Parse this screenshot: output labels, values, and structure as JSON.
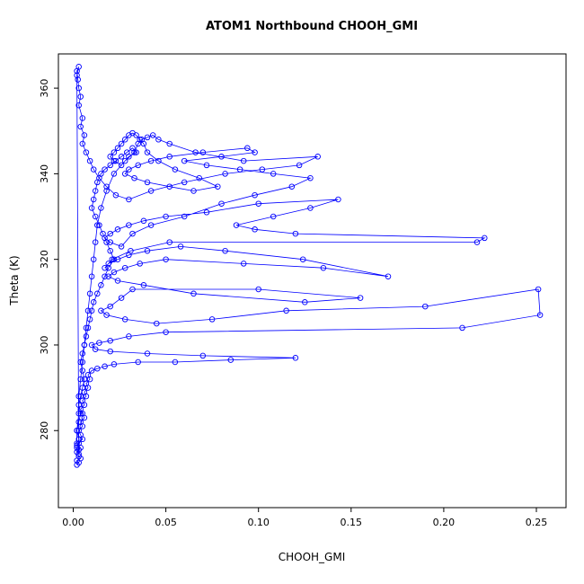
{
  "chart_data": {
    "type": "line",
    "title": "ATOM1 Northbound CHOOH_GMI",
    "xlabel": "CHOOH_GMI",
    "ylabel": "Theta (K)",
    "xlim": [
      -0.008,
      0.266
    ],
    "ylim": [
      262,
      368
    ],
    "xticks": [
      0.0,
      0.05,
      0.1,
      0.15,
      0.2,
      0.25
    ],
    "xtick_labels": [
      "0.00",
      "0.05",
      "0.10",
      "0.15",
      "0.20",
      "0.25"
    ],
    "yticks": [
      280,
      300,
      320,
      340,
      360
    ],
    "ytick_labels": [
      "280",
      "300",
      "320",
      "340",
      "360"
    ],
    "grid": false,
    "legend": null,
    "marker": "open-circle",
    "series_color": "#0000ff",
    "box_color": "#000000",
    "points": [
      [
        0.002,
        272
      ],
      [
        0.003,
        272.5
      ],
      [
        0.002,
        273
      ],
      [
        0.004,
        273.5
      ],
      [
        0.003,
        274
      ],
      [
        0.002,
        275
      ],
      [
        0.003,
        275.5
      ],
      [
        0.004,
        276
      ],
      [
        0.002,
        276.5
      ],
      [
        0.003,
        277
      ],
      [
        0.005,
        278
      ],
      [
        0.004,
        279
      ],
      [
        0.003,
        280
      ],
      [
        0.005,
        281
      ],
      [
        0.004,
        282
      ],
      [
        0.006,
        283
      ],
      [
        0.005,
        284
      ],
      [
        0.004,
        285
      ],
      [
        0.006,
        286
      ],
      [
        0.005,
        287
      ],
      [
        0.007,
        288
      ],
      [
        0.006,
        289
      ],
      [
        0.008,
        290
      ],
      [
        0.007,
        291
      ],
      [
        0.009,
        292
      ],
      [
        0.008,
        293
      ],
      [
        0.01,
        294
      ],
      [
        0.013,
        294.5
      ],
      [
        0.017,
        295
      ],
      [
        0.022,
        295.5
      ],
      [
        0.035,
        296
      ],
      [
        0.055,
        296
      ],
      [
        0.085,
        296.5
      ],
      [
        0.12,
        297
      ],
      [
        0.07,
        297.5
      ],
      [
        0.04,
        298
      ],
      [
        0.02,
        298.5
      ],
      [
        0.012,
        299
      ],
      [
        0.01,
        300
      ],
      [
        0.014,
        300.5
      ],
      [
        0.02,
        301
      ],
      [
        0.03,
        302
      ],
      [
        0.05,
        303
      ],
      [
        0.21,
        304
      ],
      [
        0.252,
        307
      ],
      [
        0.251,
        313
      ],
      [
        0.19,
        309
      ],
      [
        0.115,
        308
      ],
      [
        0.075,
        306
      ],
      [
        0.045,
        305
      ],
      [
        0.028,
        306
      ],
      [
        0.018,
        307
      ],
      [
        0.015,
        308
      ],
      [
        0.02,
        309
      ],
      [
        0.026,
        311
      ],
      [
        0.032,
        313
      ],
      [
        0.1,
        313
      ],
      [
        0.155,
        311
      ],
      [
        0.125,
        310
      ],
      [
        0.065,
        312
      ],
      [
        0.038,
        314
      ],
      [
        0.024,
        315
      ],
      [
        0.019,
        316
      ],
      [
        0.022,
        317
      ],
      [
        0.028,
        318
      ],
      [
        0.036,
        319
      ],
      [
        0.05,
        320
      ],
      [
        0.092,
        319
      ],
      [
        0.135,
        318
      ],
      [
        0.17,
        316
      ],
      [
        0.124,
        320
      ],
      [
        0.082,
        322
      ],
      [
        0.058,
        323
      ],
      [
        0.04,
        322
      ],
      [
        0.03,
        321
      ],
      [
        0.024,
        320
      ],
      [
        0.019,
        319
      ],
      [
        0.017,
        318
      ],
      [
        0.021,
        320
      ],
      [
        0.031,
        322
      ],
      [
        0.052,
        324
      ],
      [
        0.218,
        324
      ],
      [
        0.222,
        325
      ],
      [
        0.12,
        326
      ],
      [
        0.098,
        327
      ],
      [
        0.088,
        328
      ],
      [
        0.108,
        330
      ],
      [
        0.128,
        332
      ],
      [
        0.143,
        334
      ],
      [
        0.1,
        333
      ],
      [
        0.072,
        331
      ],
      [
        0.05,
        330
      ],
      [
        0.038,
        329
      ],
      [
        0.03,
        328
      ],
      [
        0.024,
        327
      ],
      [
        0.02,
        326
      ],
      [
        0.017,
        325
      ],
      [
        0.02,
        324
      ],
      [
        0.026,
        323
      ],
      [
        0.032,
        326
      ],
      [
        0.042,
        328
      ],
      [
        0.06,
        330
      ],
      [
        0.08,
        333
      ],
      [
        0.098,
        335
      ],
      [
        0.118,
        337
      ],
      [
        0.128,
        339
      ],
      [
        0.108,
        340
      ],
      [
        0.09,
        341
      ],
      [
        0.072,
        342
      ],
      [
        0.06,
        343
      ],
      [
        0.08,
        344
      ],
      [
        0.098,
        345
      ],
      [
        0.094,
        346
      ],
      [
        0.07,
        345
      ],
      [
        0.052,
        344
      ],
      [
        0.042,
        343
      ],
      [
        0.035,
        342
      ],
      [
        0.03,
        341
      ],
      [
        0.028,
        340
      ],
      [
        0.033,
        339
      ],
      [
        0.04,
        338
      ],
      [
        0.052,
        337
      ],
      [
        0.065,
        336
      ],
      [
        0.078,
        337
      ],
      [
        0.068,
        339
      ],
      [
        0.055,
        341
      ],
      [
        0.046,
        343
      ],
      [
        0.04,
        345
      ],
      [
        0.038,
        347
      ],
      [
        0.036,
        348
      ],
      [
        0.034,
        349
      ],
      [
        0.032,
        349.5
      ],
      [
        0.03,
        349
      ],
      [
        0.028,
        348
      ],
      [
        0.026,
        347
      ],
      [
        0.024,
        346
      ],
      [
        0.022,
        345
      ],
      [
        0.02,
        344
      ],
      [
        0.022,
        343
      ],
      [
        0.026,
        342
      ],
      [
        0.03,
        344
      ],
      [
        0.034,
        345
      ],
      [
        0.032,
        346
      ],
      [
        0.029,
        345
      ],
      [
        0.026,
        344
      ],
      [
        0.023,
        343
      ],
      [
        0.02,
        342
      ],
      [
        0.017,
        341
      ],
      [
        0.015,
        340
      ],
      [
        0.013,
        338
      ],
      [
        0.012,
        336
      ],
      [
        0.011,
        334
      ],
      [
        0.01,
        332
      ],
      [
        0.012,
        330
      ],
      [
        0.014,
        328
      ],
      [
        0.016,
        326
      ],
      [
        0.018,
        324
      ],
      [
        0.02,
        322
      ],
      [
        0.022,
        320
      ],
      [
        0.019,
        318
      ],
      [
        0.017,
        316
      ],
      [
        0.015,
        314
      ],
      [
        0.013,
        312
      ],
      [
        0.011,
        310
      ],
      [
        0.01,
        308
      ],
      [
        0.009,
        306
      ],
      [
        0.008,
        304
      ],
      [
        0.007,
        302
      ],
      [
        0.006,
        300
      ],
      [
        0.005,
        298
      ],
      [
        0.004,
        296
      ],
      [
        0.005,
        294
      ],
      [
        0.006,
        292
      ],
      [
        0.005,
        290
      ],
      [
        0.004,
        288
      ],
      [
        0.003,
        286
      ],
      [
        0.004,
        284
      ],
      [
        0.003,
        282
      ],
      [
        0.002,
        280
      ],
      [
        0.003,
        278
      ],
      [
        0.002,
        276
      ],
      [
        0.003,
        274.5
      ],
      [
        0.002,
        363
      ],
      [
        0.003,
        365
      ],
      [
        0.002,
        364
      ],
      [
        0.0025,
        362
      ],
      [
        0.003,
        360
      ],
      [
        0.004,
        358
      ],
      [
        0.003,
        356
      ],
      [
        0.005,
        353
      ],
      [
        0.004,
        351
      ],
      [
        0.006,
        349
      ],
      [
        0.005,
        347
      ],
      [
        0.007,
        345
      ],
      [
        0.009,
        343
      ],
      [
        0.011,
        341
      ],
      [
        0.014,
        339
      ],
      [
        0.018,
        337
      ],
      [
        0.023,
        335
      ],
      [
        0.03,
        334
      ],
      [
        0.042,
        336
      ],
      [
        0.06,
        338
      ],
      [
        0.082,
        340
      ],
      [
        0.102,
        341
      ],
      [
        0.122,
        342
      ],
      [
        0.132,
        344
      ],
      [
        0.092,
        343
      ],
      [
        0.066,
        345
      ],
      [
        0.052,
        347
      ],
      [
        0.046,
        348
      ],
      [
        0.043,
        349
      ],
      [
        0.04,
        348.5
      ],
      [
        0.037,
        348
      ],
      [
        0.035,
        347
      ],
      [
        0.033,
        345
      ],
      [
        0.028,
        343
      ],
      [
        0.022,
        340
      ],
      [
        0.018,
        336
      ],
      [
        0.015,
        332
      ],
      [
        0.013,
        328
      ],
      [
        0.012,
        324
      ],
      [
        0.011,
        320
      ],
      [
        0.01,
        316
      ],
      [
        0.009,
        312
      ],
      [
        0.008,
        308
      ],
      [
        0.007,
        304
      ],
      [
        0.006,
        300
      ],
      [
        0.005,
        296
      ],
      [
        0.004,
        292
      ],
      [
        0.003,
        288
      ],
      [
        0.003,
        284
      ],
      [
        0.002,
        280
      ],
      [
        0.002,
        277
      ]
    ]
  }
}
